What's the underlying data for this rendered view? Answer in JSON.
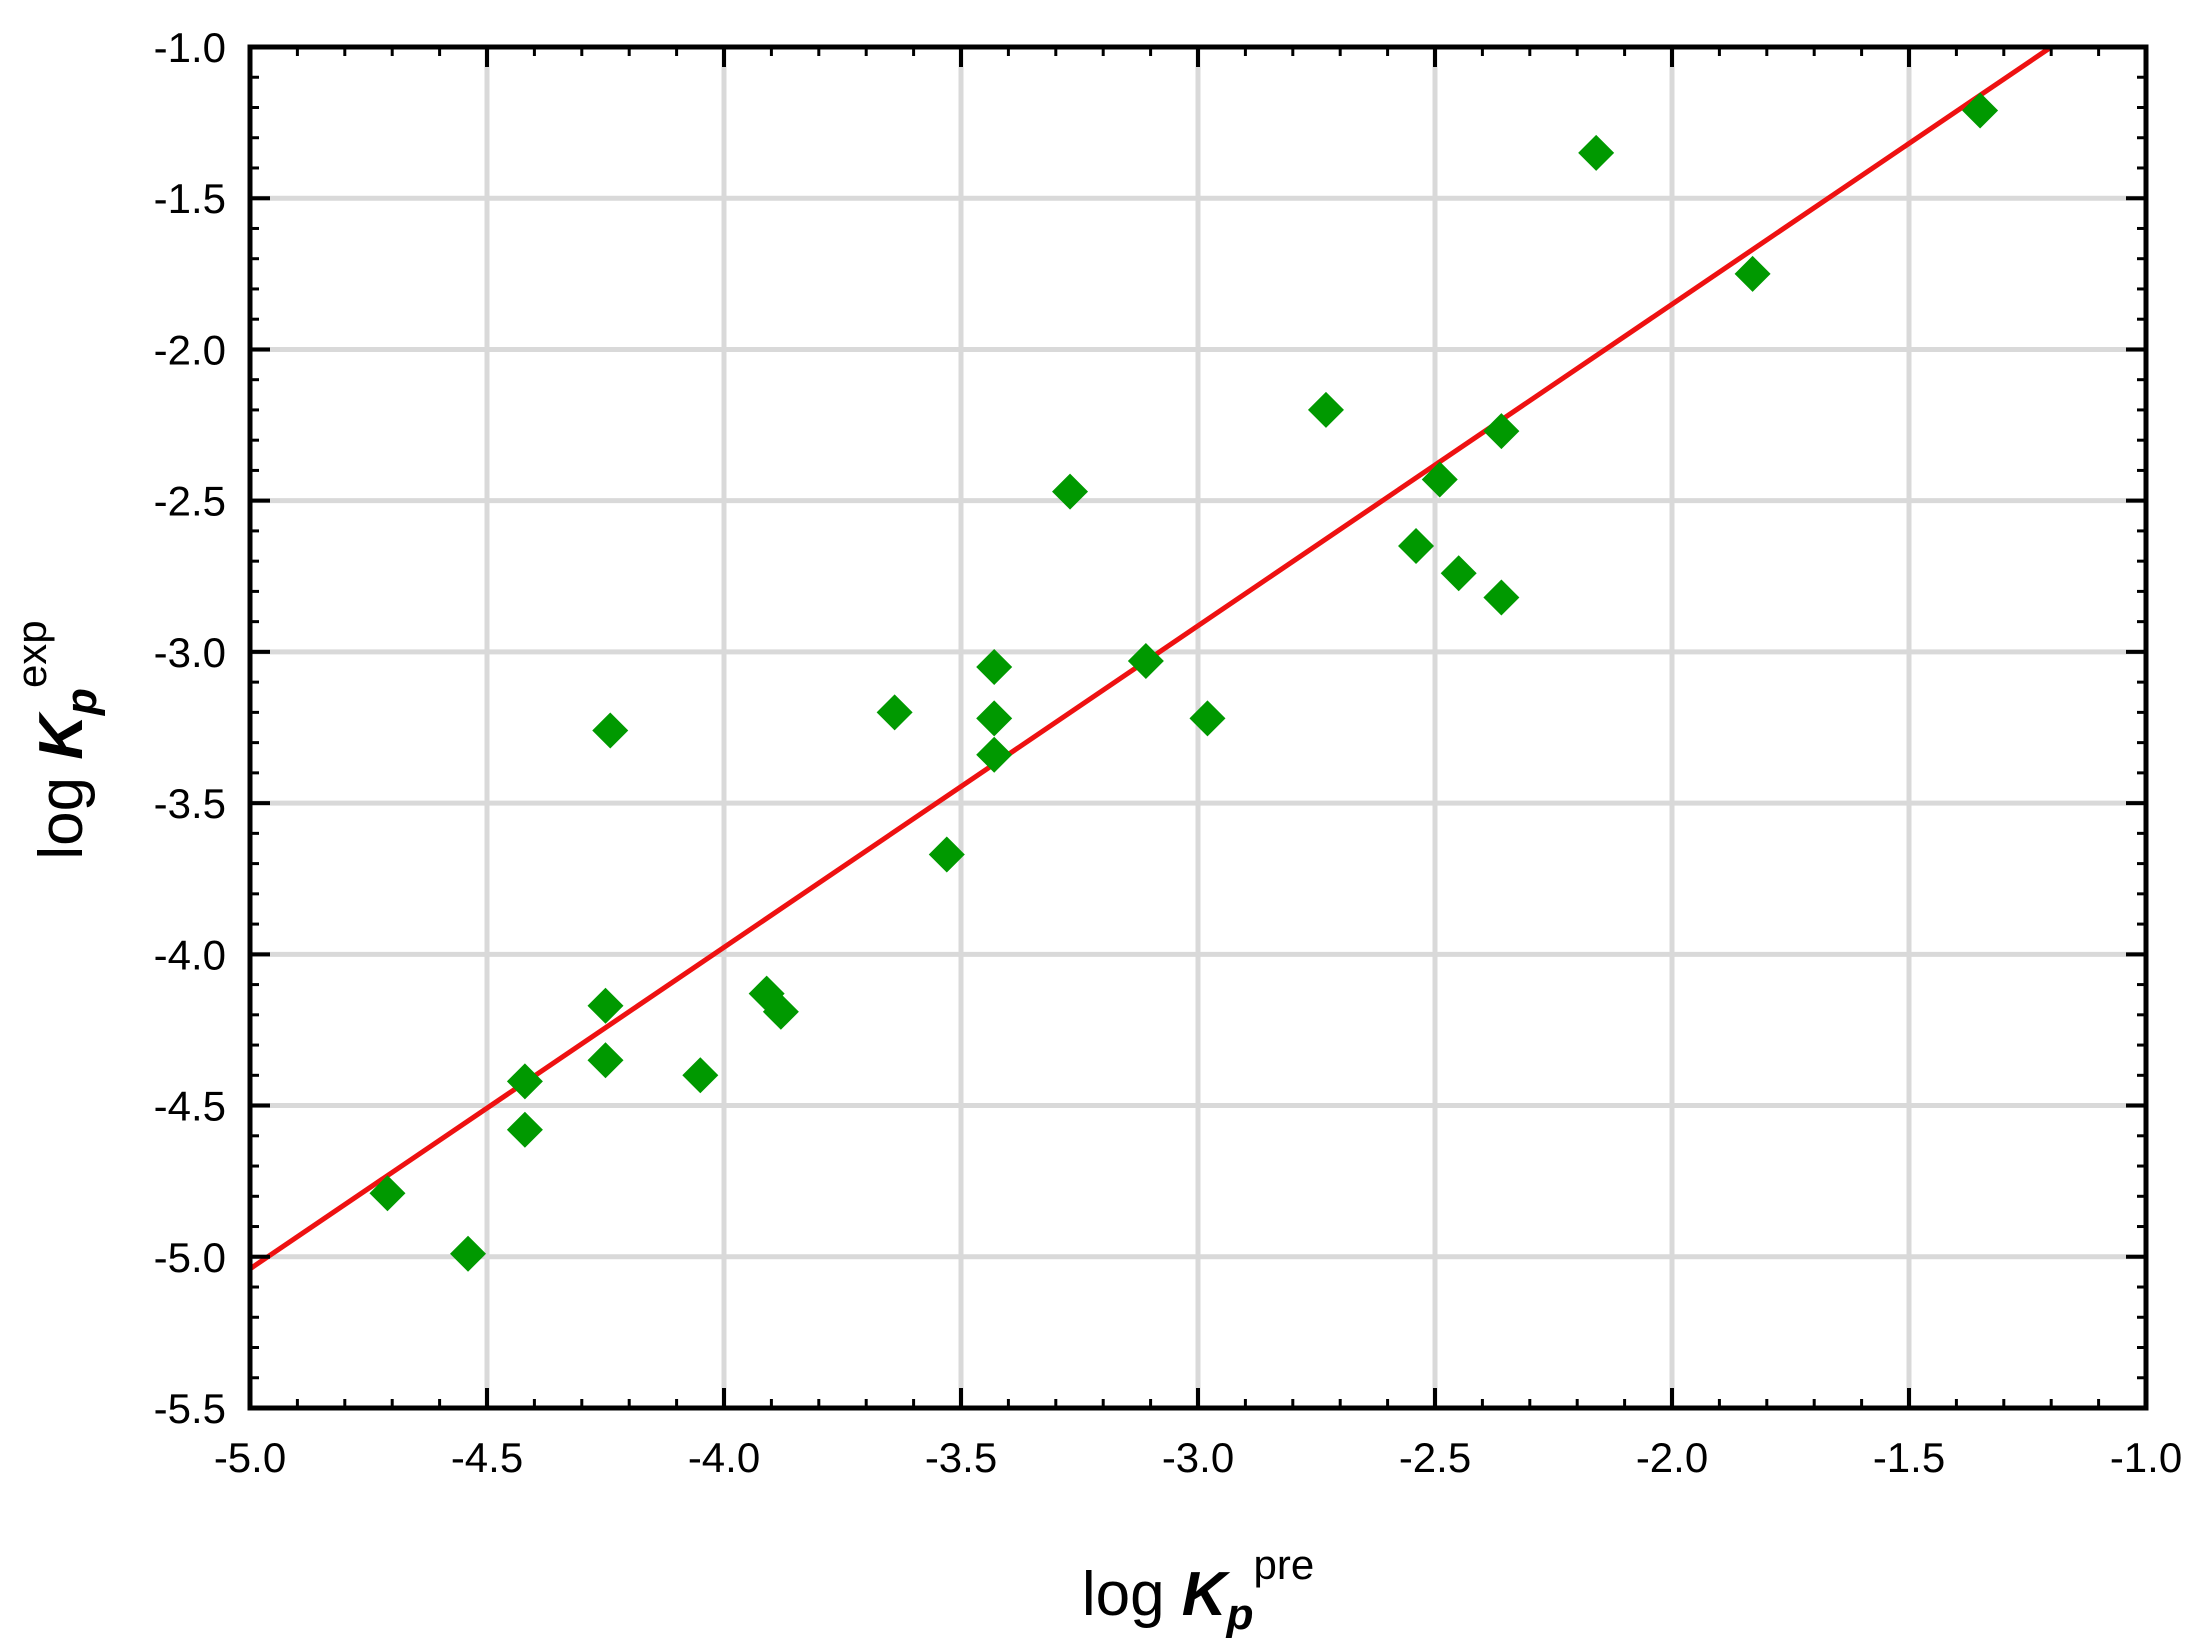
{
  "chart_data": {
    "type": "scatter",
    "xlabel": {
      "prefix": "log ",
      "symbol": "K",
      "sub": "p",
      "sup": "pre"
    },
    "ylabel": {
      "prefix": "log ",
      "symbol": "K",
      "sub": "p",
      "sup": "exp"
    },
    "xlim": [
      -5.0,
      -1.0
    ],
    "ylim": [
      -5.5,
      -1.0
    ],
    "xticks": [
      "-5.0",
      "-4.5",
      "-4.0",
      "-3.5",
      "-3.0",
      "-2.5",
      "-2.0",
      "-1.5",
      "-1.0"
    ],
    "yticks": [
      "-1.0",
      "-1.5",
      "-2.0",
      "-2.5",
      "-3.0",
      "-3.5",
      "-4.0",
      "-4.5",
      "-5.0",
      "-5.5"
    ],
    "grid": true,
    "marker_color": "#009900",
    "line_color": "#ee1111",
    "points": [
      {
        "x": -4.71,
        "y": -4.79
      },
      {
        "x": -4.54,
        "y": -4.99
      },
      {
        "x": -4.42,
        "y": -4.42
      },
      {
        "x": -4.42,
        "y": -4.58
      },
      {
        "x": -4.25,
        "y": -4.17
      },
      {
        "x": -4.25,
        "y": -4.35
      },
      {
        "x": -4.24,
        "y": -3.26
      },
      {
        "x": -4.05,
        "y": -4.4
      },
      {
        "x": -3.91,
        "y": -4.13
      },
      {
        "x": -3.88,
        "y": -4.19
      },
      {
        "x": -3.64,
        "y": -3.2
      },
      {
        "x": -3.53,
        "y": -3.67
      },
      {
        "x": -3.43,
        "y": -3.05
      },
      {
        "x": -3.43,
        "y": -3.22
      },
      {
        "x": -3.43,
        "y": -3.34
      },
      {
        "x": -3.27,
        "y": -2.47
      },
      {
        "x": -3.11,
        "y": -3.03
      },
      {
        "x": -2.98,
        "y": -3.22
      },
      {
        "x": -2.73,
        "y": -2.2
      },
      {
        "x": -2.54,
        "y": -2.65
      },
      {
        "x": -2.49,
        "y": -2.43
      },
      {
        "x": -2.45,
        "y": -2.74
      },
      {
        "x": -2.36,
        "y": -2.27
      },
      {
        "x": -2.36,
        "y": -2.82
      },
      {
        "x": -2.16,
        "y": -1.35
      },
      {
        "x": -1.83,
        "y": -1.75
      },
      {
        "x": -1.35,
        "y": -1.21
      }
    ],
    "fit_line": {
      "x": [
        -5.0,
        -1.2
      ],
      "y": [
        -5.04,
        -1.0
      ]
    }
  }
}
